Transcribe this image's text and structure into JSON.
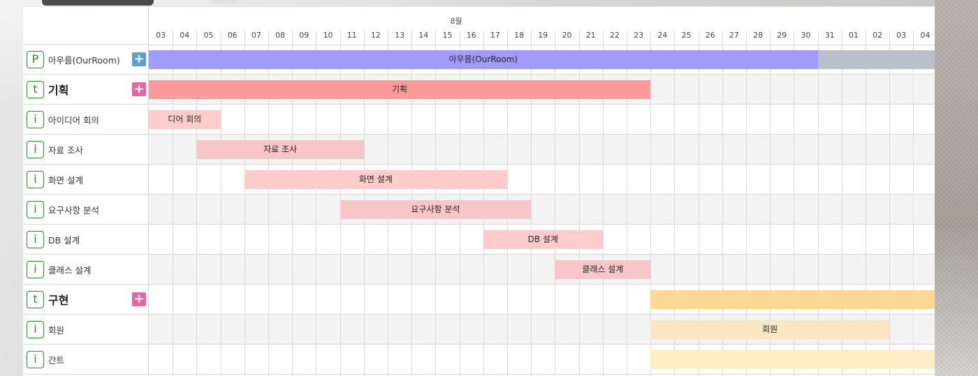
{
  "timeline": {
    "month": "8월",
    "days": [
      "03",
      "04",
      "05",
      "06",
      "07",
      "08",
      "09",
      "10",
      "11",
      "12",
      "13",
      "14",
      "15",
      "16",
      "17",
      "18",
      "19",
      "20",
      "21",
      "22",
      "23",
      "24",
      "25",
      "26",
      "27",
      "28",
      "29",
      "30",
      "31",
      "01",
      "02",
      "03",
      "04"
    ]
  },
  "rows": [
    {
      "type": "P",
      "label": "아우름(OurRoom)",
      "bold": false,
      "add": true,
      "add_color": "#5aa0cf"
    },
    {
      "type": "t",
      "label": "기획",
      "bold": true,
      "add": true,
      "add_color": "#e8669f"
    },
    {
      "type": "i",
      "label": "아이디어 회의",
      "bold": false,
      "add": false
    },
    {
      "type": "i",
      "label": "자료 조사",
      "bold": false,
      "add": false
    },
    {
      "type": "i",
      "label": "화면 설계",
      "bold": false,
      "add": false
    },
    {
      "type": "i",
      "label": "요구사항 분석",
      "bold": false,
      "add": false
    },
    {
      "type": "i",
      "label": "DB 설계",
      "bold": false,
      "add": false
    },
    {
      "type": "i",
      "label": "클래스 설계",
      "bold": false,
      "add": false
    },
    {
      "type": "t",
      "label": "구현",
      "bold": true,
      "add": true,
      "add_color": "#e8669f"
    },
    {
      "type": "i",
      "label": "회원",
      "bold": false,
      "add": false
    },
    {
      "type": "i",
      "label": "간트",
      "bold": false,
      "add": false
    }
  ],
  "bars": [
    {
      "row": 0,
      "start": "08-03",
      "end": "08-30",
      "label": "아우름(OurRoom)",
      "color": "#a29bfe",
      "rest_color": "#b8c0cc",
      "rest_end": "09-04"
    },
    {
      "row": 1,
      "start": "08-03",
      "end": "08-23",
      "label": "기획",
      "color": "#ff9a9a"
    },
    {
      "row": 2,
      "start": "08-03",
      "end": "08-05",
      "label": "디어 회의",
      "color": "#ffcccc",
      "partial_start": true
    },
    {
      "row": 3,
      "start": "08-05",
      "end": "08-11",
      "label": "자료 조사",
      "color": "#f8c6c6"
    },
    {
      "row": 4,
      "start": "08-07",
      "end": "08-17",
      "label": "화면 설계",
      "color": "#ffcccc"
    },
    {
      "row": 5,
      "start": "08-11",
      "end": "08-18",
      "label": "요구사항 분석",
      "color": "#f8c6c6"
    },
    {
      "row": 6,
      "start": "08-17",
      "end": "08-21",
      "label": "DB 설계",
      "color": "#ffcccc"
    },
    {
      "row": 7,
      "start": "08-20",
      "end": "08-23",
      "label": "클래스 설계",
      "color": "#f8c6c6"
    },
    {
      "row": 8,
      "start": "08-24",
      "end": "09-04",
      "label": "",
      "color": "#ffd993"
    },
    {
      "row": 9,
      "start": "08-24",
      "end": "09-02",
      "label": "회원",
      "color": "#fbe6c4"
    },
    {
      "row": 10,
      "start": "08-24",
      "end": "09-04",
      "label": "",
      "color": "#ffedc6"
    }
  ]
}
